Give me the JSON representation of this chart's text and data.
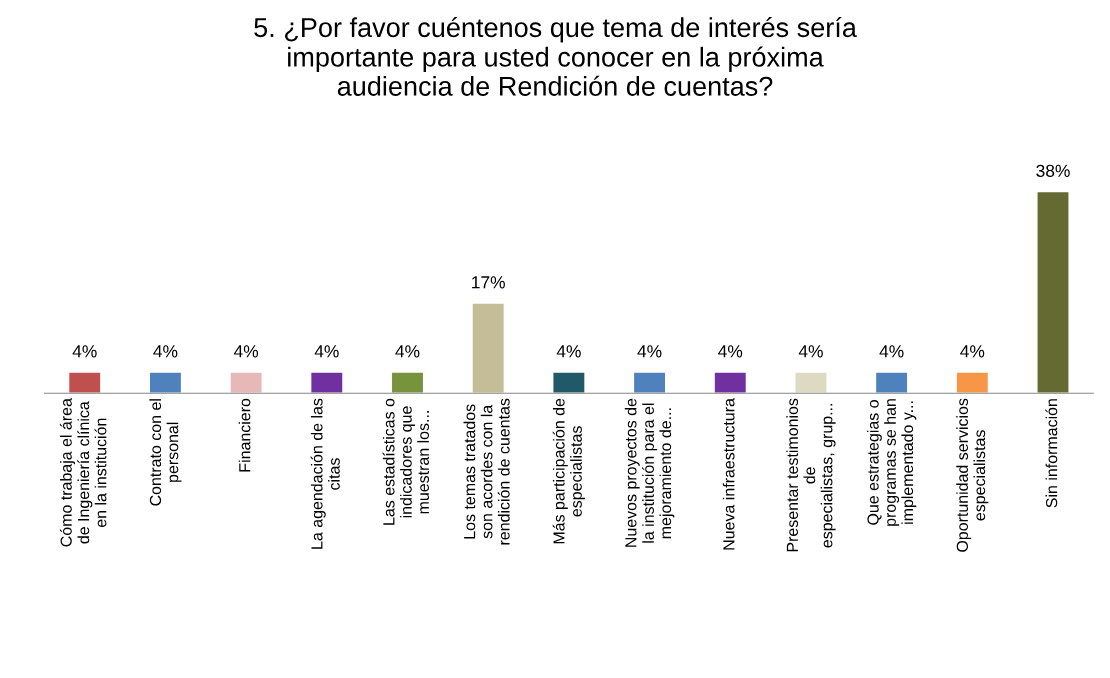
{
  "chart_data": {
    "type": "bar",
    "title": "5. ¿Por favor cuéntenos que tema de interés sería\nimportante para usted conocer en la próxima\naudiencia de Rendición de cuentas?",
    "categories": [
      "Cómo trabaja el área\nde Ingeniería clínica\nen la institución",
      "Contrato con el\npersonal",
      "Financiero",
      "La agendación de las\ncitas",
      "Las estadísticas o\nindicadores que\nmuestran los...",
      "Los temas tratados\nson acordes con la\nrendición de cuentas",
      "Más participación de\nespecialistas",
      "Nuevos proyectos de\nla institución para el\nmejoramiento de...",
      "Nueva infraestructura",
      "Presentar testimonios\nde\nespecialistas, grup...",
      "Que estrategias o\nprogramas se han\nimplementado y...",
      "Oportunidad servicios\nespecialistas",
      "Sin información"
    ],
    "values": [
      4,
      4,
      4,
      4,
      4,
      17,
      4,
      4,
      4,
      4,
      4,
      4,
      38
    ],
    "value_labels": [
      "4%",
      "4%",
      "4%",
      "4%",
      "4%",
      "17%",
      "4%",
      "4%",
      "4%",
      "4%",
      "4%",
      "4%",
      "38%"
    ],
    "colors": [
      "#c0504d",
      "#4f81bd",
      "#e6b9b8",
      "#7030a0",
      "#77933c",
      "#c4bd97",
      "#215968",
      "#4f81bd",
      "#7030a0",
      "#ddd9c3",
      "#4f81bd",
      "#f79646",
      "#656a32"
    ],
    "grid": false,
    "legend": false
  }
}
